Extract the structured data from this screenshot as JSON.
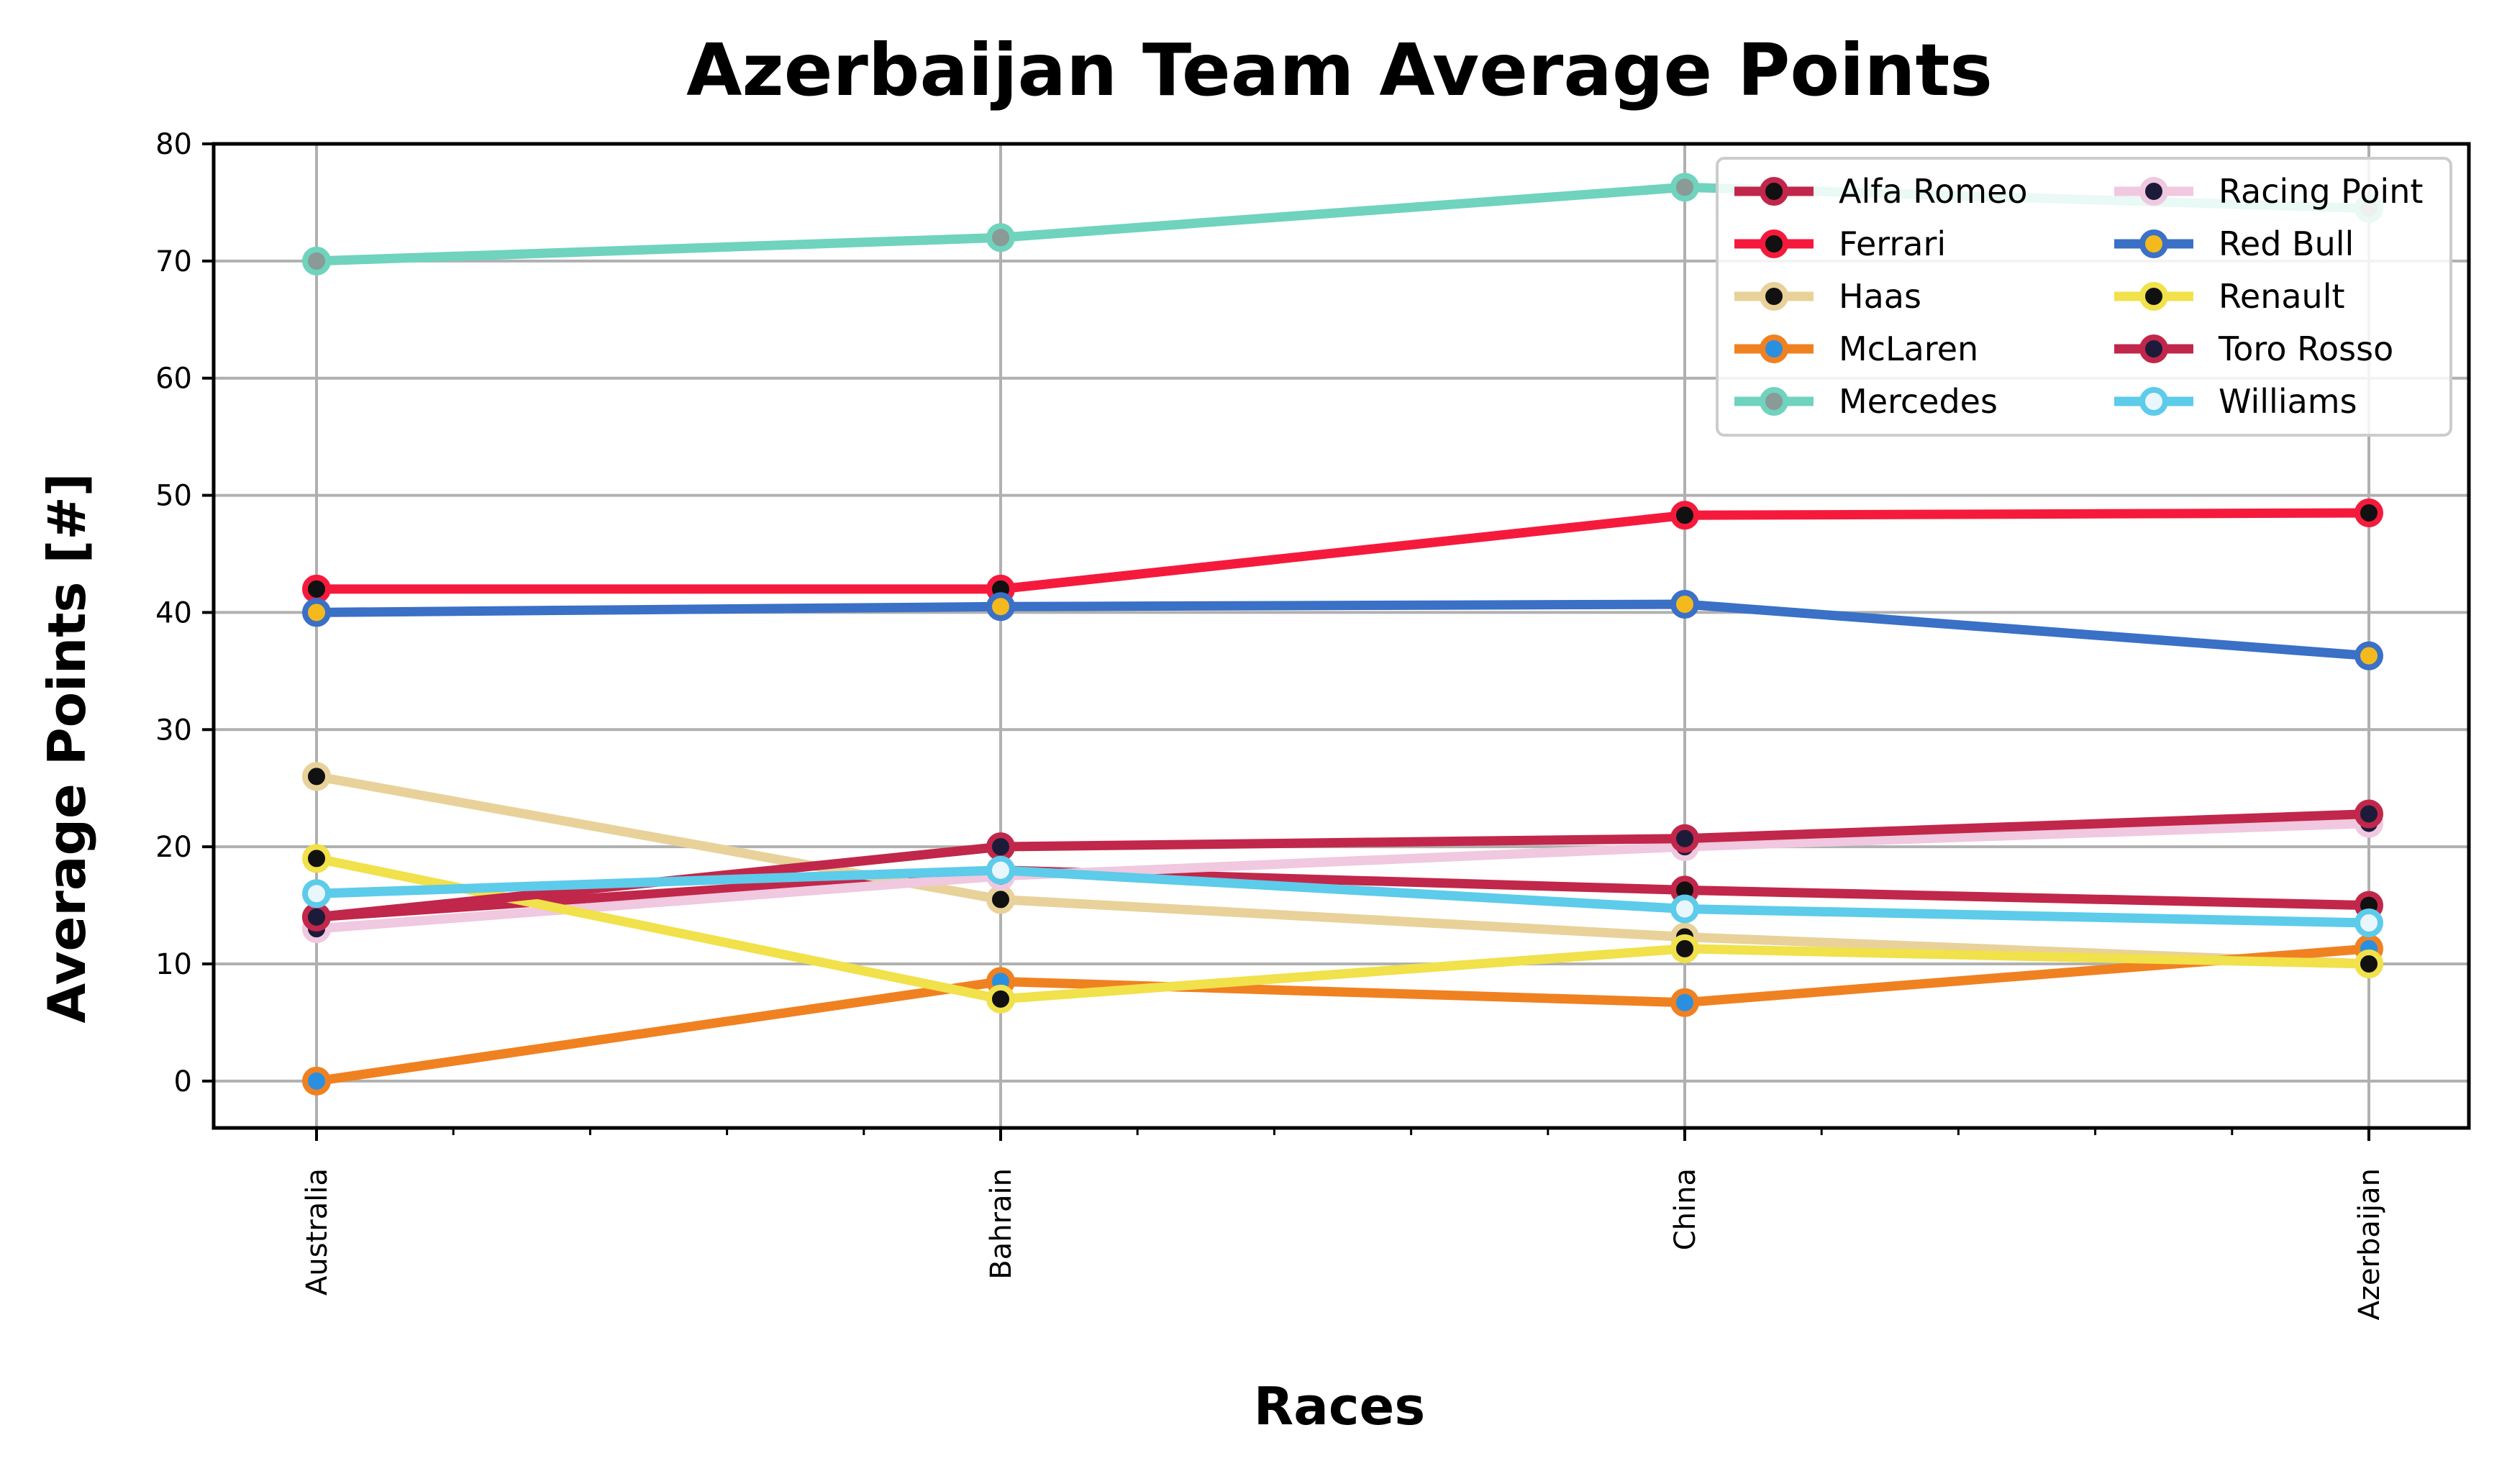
{
  "chart_data": {
    "type": "line",
    "title": "Azerbaijan Team Average Points",
    "xlabel": "Races",
    "ylabel": "Average Points [#]",
    "categories": [
      "Australia",
      "Bahrain",
      "China",
      "Azerbaijan"
    ],
    "ylim": [
      -4,
      80
    ],
    "yticks": [
      0,
      10,
      20,
      30,
      40,
      50,
      60,
      70,
      80
    ],
    "grid": true,
    "legend_position": "top-right",
    "legend_columns": 2,
    "series": [
      {
        "name": "Alfa Romeo",
        "color": "#c1274a",
        "marker_color": "#111111",
        "values": [
          14,
          18,
          16.3,
          15
        ]
      },
      {
        "name": "Ferrari",
        "color": "#f51a3c",
        "marker_color": "#111111",
        "values": [
          42,
          42,
          48.3,
          48.5
        ]
      },
      {
        "name": "Haas",
        "color": "#e8d29a",
        "marker_color": "#111111",
        "values": [
          26,
          15.5,
          12.3,
          10
        ]
      },
      {
        "name": "McLaren",
        "color": "#f08121",
        "marker_color": "#2b8fe0",
        "values": [
          0,
          8.5,
          6.7,
          11.3
        ]
      },
      {
        "name": "Mercedes",
        "color": "#6fd3bd",
        "marker_color": "#8a9a96",
        "values": [
          70,
          72,
          76.3,
          74.5
        ]
      },
      {
        "name": "Racing Point",
        "color": "#f0c8df",
        "marker_color": "#1c1c3a",
        "values": [
          13,
          17.5,
          20,
          22
        ]
      },
      {
        "name": "Red Bull",
        "color": "#3a70c6",
        "marker_color": "#f4b91d",
        "values": [
          40,
          40.5,
          40.7,
          36.3
        ]
      },
      {
        "name": "Renault",
        "color": "#f1e14a",
        "marker_color": "#111111",
        "values": [
          19,
          7,
          11.3,
          10
        ]
      },
      {
        "name": "Toro Rosso",
        "color": "#c1274a",
        "marker_color": "#1c1c3a",
        "values": [
          14,
          20,
          20.7,
          22.8
        ]
      },
      {
        "name": "Williams",
        "color": "#5dcbea",
        "marker_color": "#e9f6fb",
        "values": [
          16,
          18,
          14.7,
          13.5
        ]
      }
    ]
  }
}
